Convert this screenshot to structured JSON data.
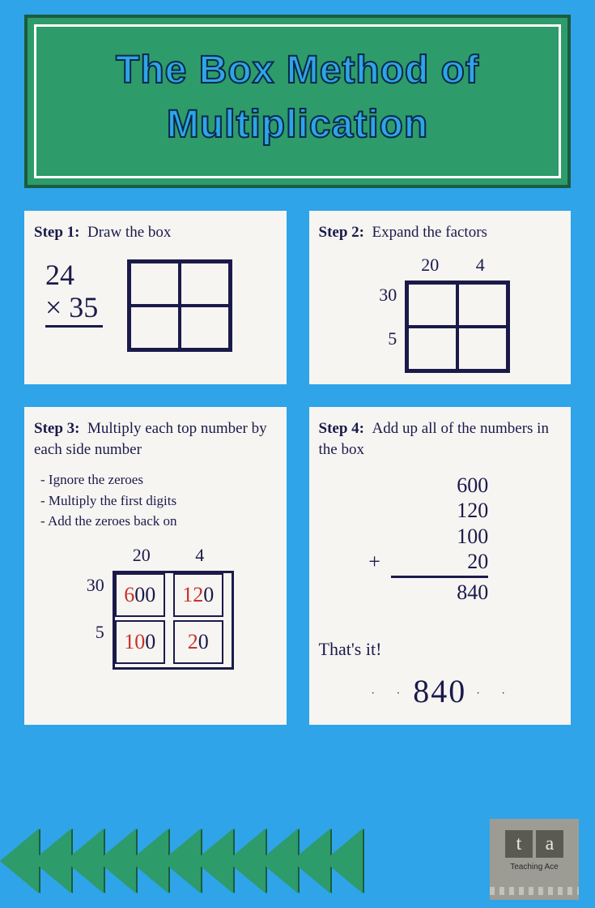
{
  "title_line1": "The Box Method of",
  "title_line2": "Multiplication",
  "colors": {
    "page_bg": "#2fa4e8",
    "header_bg": "#2d9b6a",
    "header_border": "#1a5c3f",
    "title_stroke": "#0a2a45",
    "panel_bg": "#f7f5f2",
    "ink": "#1a1a4a",
    "accent_red": "#c8332b",
    "logo_bg": "#9c9c94",
    "logo_tile": "#5a5a52"
  },
  "step1": {
    "label": "Step 1:",
    "title": "Draw the box",
    "multiplicand": "24",
    "multiplier": "× 35",
    "grid": {
      "rows": 2,
      "cols": 2
    }
  },
  "step2": {
    "label": "Step 2:",
    "title": "Expand the factors",
    "top_labels": [
      "20",
      "4"
    ],
    "side_labels": [
      "30",
      "5"
    ],
    "grid": {
      "rows": 2,
      "cols": 2
    }
  },
  "step3": {
    "label": "Step 3:",
    "title": "Multiply each top number by each side number",
    "bullets": [
      "- Ignore the zeroes",
      "- Multiply the first digits",
      "- Add the zeroes back on"
    ],
    "top_labels": [
      "20",
      "4"
    ],
    "side_labels": [
      "30",
      "5"
    ],
    "cells": [
      {
        "red": "6",
        "rest": "00"
      },
      {
        "red": "12",
        "rest": "0"
      },
      {
        "red": "10",
        "rest": "0"
      },
      {
        "red": "2",
        "rest": "0"
      }
    ]
  },
  "step4": {
    "label": "Step 4:",
    "title": "Add up all of the numbers in the box",
    "addends": [
      "600",
      "120",
      "100",
      "20"
    ],
    "sum": "840",
    "closing": "That's it!",
    "final": "840"
  },
  "logo": {
    "letters": [
      "t",
      "a"
    ],
    "label": "Teaching Ace"
  }
}
